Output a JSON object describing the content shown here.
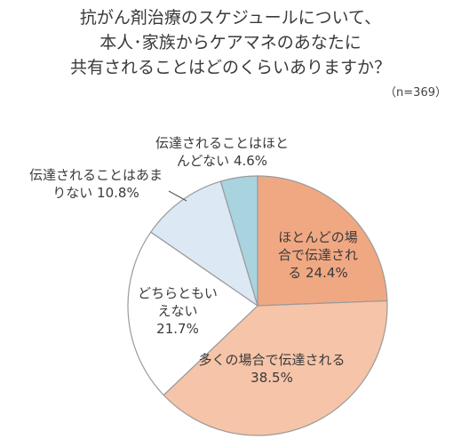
{
  "title_lines": [
    "抗がん剤治療のスケジュールについて、",
    "本人･家族からケアマネのあなたに",
    "共有されることはどのくらいありますか？"
  ],
  "sample_size": "（n=369）",
  "chart_data": {
    "type": "pie",
    "categories": [
      "ほとんどの場合で伝達される",
      "多くの場合で伝達される",
      "どちらともいえない",
      "伝達されることはあまりない",
      "伝達されることはほとんどない"
    ],
    "values": [
      24.4,
      38.5,
      21.7,
      10.8,
      4.6
    ],
    "labels": [
      [
        "ほとんどの場",
        "合で伝達され",
        "る 24.4%"
      ],
      [
        "多くの場合で伝達される",
        "38.5%"
      ],
      [
        "どちらともい",
        "えない",
        "21.7%"
      ],
      [
        "伝達されることはあま",
        "りない 10.8%"
      ],
      [
        "伝達されることはほと",
        "んどない 4.6%"
      ]
    ],
    "colors": [
      "#f0a883",
      "#f6c4a8",
      "#ffffff",
      "#dce8f4",
      "#a8d3df"
    ],
    "unit": "%",
    "start": "12 o'clock, clockwise"
  }
}
